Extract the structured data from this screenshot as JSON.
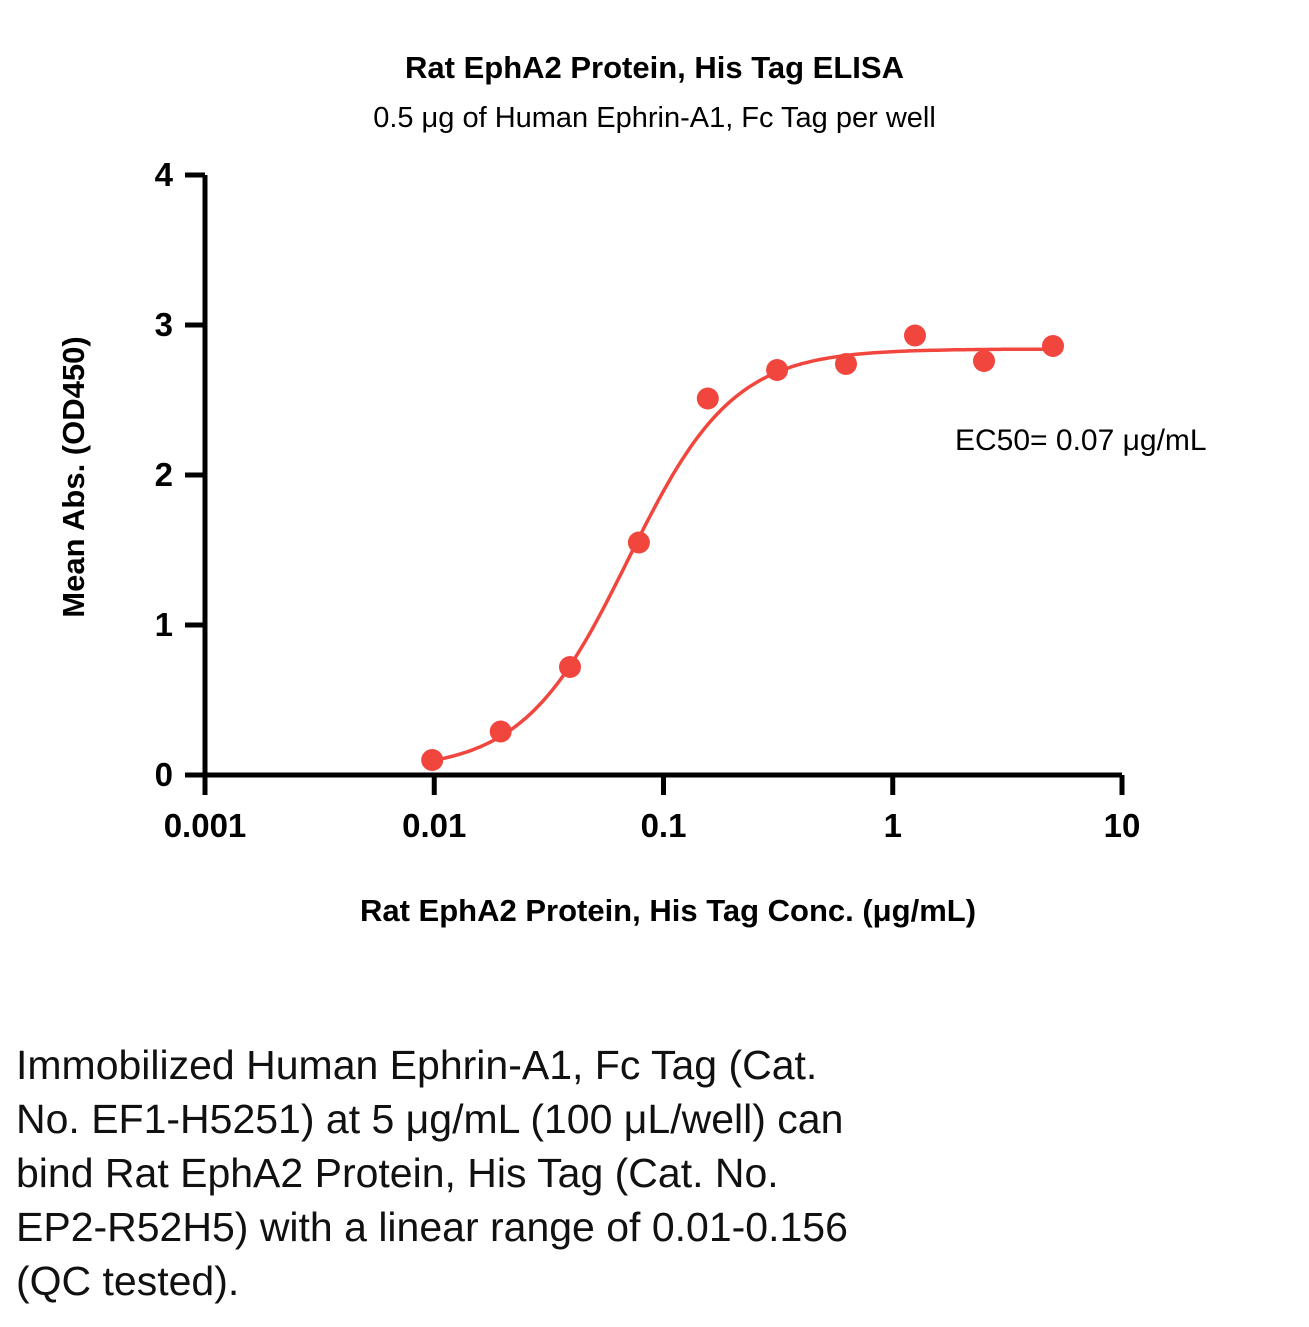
{
  "chart_data": {
    "type": "scatter",
    "title": "Rat EphA2 Protein, His Tag ELISA",
    "subtitle": "0.5 μg of Human Ephrin-A1, Fc Tag per well",
    "xlabel": "Rat EphA2 Protein, His Tag Conc. (μg/mL)",
    "ylabel": "Mean Abs. (OD450)",
    "x_scale": "log10",
    "xlim": [
      0.001,
      10
    ],
    "ylim": [
      0,
      4
    ],
    "grid": false,
    "legend": "none",
    "color": "#F1463E",
    "x_ticks": [
      {
        "value": 0.001,
        "label": "0.001"
      },
      {
        "value": 0.01,
        "label": "0.01"
      },
      {
        "value": 0.1,
        "label": "0.1"
      },
      {
        "value": 1,
        "label": "1"
      },
      {
        "value": 10,
        "label": "10"
      }
    ],
    "y_ticks": [
      {
        "value": 0,
        "label": "0"
      },
      {
        "value": 1,
        "label": "1"
      },
      {
        "value": 2,
        "label": "2"
      },
      {
        "value": 3,
        "label": "3"
      },
      {
        "value": 4,
        "label": "4"
      }
    ],
    "points": [
      {
        "x": 0.0098,
        "y": 0.1
      },
      {
        "x": 0.0195,
        "y": 0.29
      },
      {
        "x": 0.0391,
        "y": 0.72
      },
      {
        "x": 0.0781,
        "y": 1.55
      },
      {
        "x": 0.156,
        "y": 2.51
      },
      {
        "x": 0.313,
        "y": 2.7
      },
      {
        "x": 0.625,
        "y": 2.74
      },
      {
        "x": 1.25,
        "y": 2.93
      },
      {
        "x": 2.5,
        "y": 2.76
      },
      {
        "x": 5,
        "y": 2.86
      }
    ],
    "fit": {
      "model": "4PL",
      "ec50": 0.07,
      "hill": 1.9,
      "top": 2.84,
      "bottom": 0.03
    },
    "curve_x_range": [
      0.0093,
      5
    ],
    "annotation": {
      "text": "EC50= 0.07 μg/mL"
    }
  },
  "caption": {
    "text": "Immobilized Human Ephrin-A1, Fc Tag (Cat.\nNo. EF1-H5251) at 5 μg/mL (100 μL/well) can\nbind Rat EphA2 Protein, His Tag (Cat. No.\nEP2-R52H5) with a linear range of 0.01-0.156\n(QC tested)."
  }
}
